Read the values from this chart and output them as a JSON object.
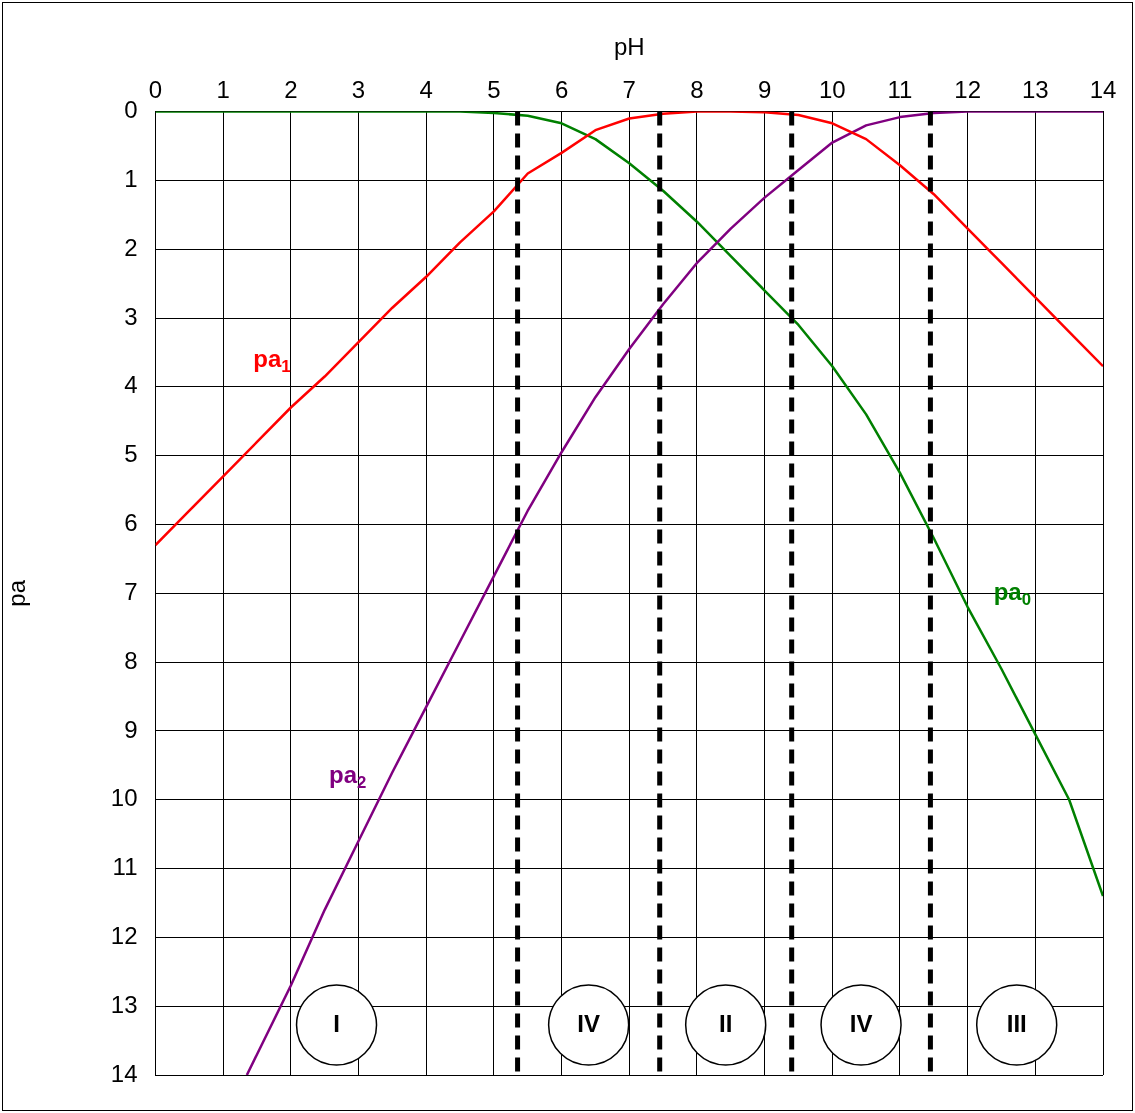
{
  "chart_data": {
    "type": "line",
    "xlabel": "pH",
    "ylabel": "pa",
    "xlim": [
      0,
      14
    ],
    "xticks": [
      0,
      1,
      2,
      3,
      4,
      5,
      6,
      7,
      8,
      9,
      10,
      11,
      12,
      13,
      14
    ],
    "ylim": [
      14,
      0
    ],
    "yticks": [
      0,
      1,
      2,
      3,
      4,
      5,
      6,
      7,
      8,
      9,
      10,
      11,
      12,
      13,
      14
    ],
    "grid": true,
    "legend": false,
    "marker": "none",
    "line_style": "solid",
    "series": [
      {
        "name": "pa$_{1}$",
        "color": "#ff0000",
        "x": [
          0,
          0.5,
          1,
          1.5,
          2,
          2.5,
          3,
          3.5,
          4,
          4.5,
          5,
          5.5,
          6,
          6.5,
          7,
          7.5,
          8,
          8.5,
          9,
          9.5,
          10,
          10.5,
          11,
          11.5,
          12,
          12.5,
          13,
          13.5,
          14
        ],
        "values": [
          6.3,
          5.8,
          5.3,
          4.8,
          4.3,
          3.85,
          3.35,
          2.85,
          2.4,
          1.9,
          1.45,
          0.9,
          0.6,
          0.27,
          0.1,
          0.03,
          0,
          0,
          0.01,
          0.05,
          0.17,
          0.4,
          0.78,
          1.2,
          1.7,
          2.2,
          2.7,
          3.2,
          3.7
        ]
      },
      {
        "name": "pa$_{2}$",
        "color": "#800080",
        "x": [
          1.35,
          2,
          2.5,
          3,
          3.5,
          4,
          4.5,
          5,
          5.5,
          6,
          6.5,
          7,
          7.5,
          8,
          8.5,
          9,
          9.5,
          10,
          10.5,
          11,
          11.5,
          12,
          14
        ],
        "values": [
          14,
          12.7,
          11.6,
          10.6,
          9.6,
          8.65,
          7.7,
          6.75,
          5.8,
          4.95,
          4.15,
          3.45,
          2.8,
          2.2,
          1.7,
          1.25,
          0.85,
          0.45,
          0.2,
          0.08,
          0.02,
          0,
          0
        ]
      },
      {
        "name": "pa$_{0}$",
        "color": "#008000",
        "x": [
          0,
          4.5,
          5,
          5.5,
          6,
          6.5,
          7,
          7.5,
          8,
          8.5,
          9,
          9.5,
          10,
          10.5,
          11,
          11.5,
          12,
          12.5,
          13,
          13.5,
          14
        ],
        "values": [
          0,
          0,
          0.02,
          0.06,
          0.17,
          0.4,
          0.75,
          1.15,
          1.6,
          2.1,
          2.6,
          3.1,
          3.7,
          4.4,
          5.25,
          6.2,
          7.2,
          8.1,
          9.05,
          10.0,
          11.4
        ]
      }
    ],
    "ref_lines": [
      {
        "axis": "x",
        "value": 5.35,
        "color": "#000000",
        "line_style": "dashed"
      },
      {
        "axis": "x",
        "value": 7.45,
        "color": "#000000",
        "line_style": "dashed"
      },
      {
        "axis": "x",
        "value": 9.4,
        "color": "#000000",
        "line_style": "dashed"
      },
      {
        "axis": "x",
        "value": 11.45,
        "color": "#000000",
        "line_style": "dashed"
      }
    ],
    "annotations": [
      "I",
      "IV",
      "II",
      "IV",
      "III"
    ]
  }
}
